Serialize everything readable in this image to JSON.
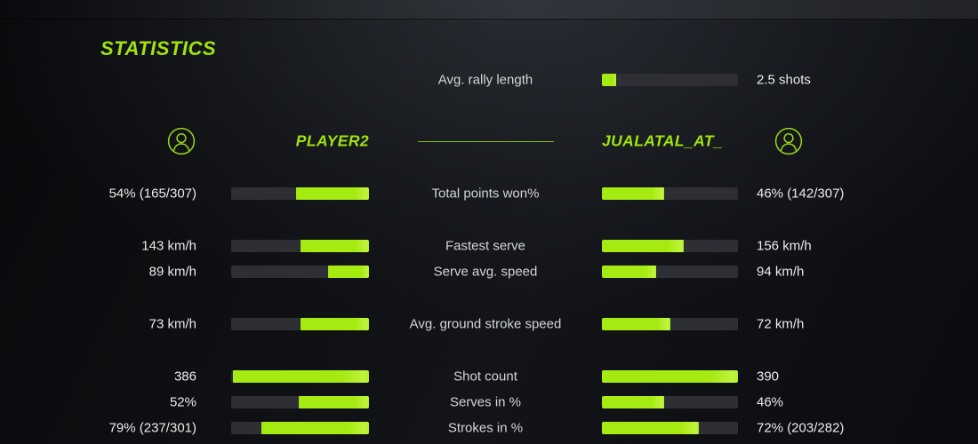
{
  "page": {
    "title": "STATISTICS"
  },
  "colors": {
    "accent_green": "#9fe40f",
    "bar_fill_green": "#a5ea10",
    "bar_track": "#2d2f34",
    "background": "#111317"
  },
  "icons": {
    "player_avatar": "person-in-circle-icon"
  },
  "rally": {
    "label": "Avg. rally length",
    "value": "2.5 shots",
    "fill_pct": 10.5
  },
  "players": {
    "left": {
      "name": "PLAYER2"
    },
    "right": {
      "name": "JUALATAL_AT_"
    }
  },
  "stats": [
    {
      "label": "Total points won%",
      "left": {
        "value": "54% (165/307)",
        "fill_pct": 53
      },
      "right": {
        "value": "46% (142/307)",
        "fill_pct": 46
      }
    },
    {
      "label": "Fastest serve",
      "left": {
        "value": "143 km/h",
        "fill_pct": 50
      },
      "right": {
        "value": "156 km/h",
        "fill_pct": 60
      }
    },
    {
      "label": "Serve avg. speed",
      "left": {
        "value": "89 km/h",
        "fill_pct": 30
      },
      "right": {
        "value": "94 km/h",
        "fill_pct": 40
      }
    },
    {
      "label": "Avg. ground stroke speed",
      "left": {
        "value": "73 km/h",
        "fill_pct": 50
      },
      "right": {
        "value": "72 km/h",
        "fill_pct": 50
      }
    },
    {
      "label": "Shot count",
      "left": {
        "value": "386",
        "fill_pct": 99
      },
      "right": {
        "value": "390",
        "fill_pct": 100
      }
    },
    {
      "label": "Serves in %",
      "left": {
        "value": "52%",
        "fill_pct": 51
      },
      "right": {
        "value": "46%",
        "fill_pct": 46
      }
    },
    {
      "label": "Strokes in %",
      "left": {
        "value": "79% (237/301)",
        "fill_pct": 78
      },
      "right": {
        "value": "72% (203/282)",
        "fill_pct": 71
      }
    }
  ]
}
